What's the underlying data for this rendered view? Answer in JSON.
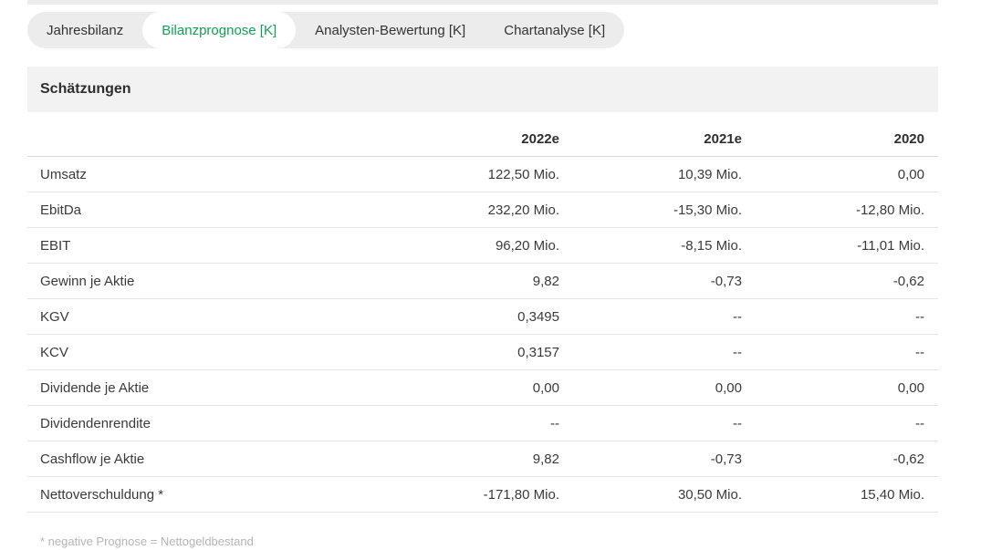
{
  "colors": {
    "accent": "#12a054"
  },
  "tabs": [
    {
      "label": "Jahresbilanz",
      "active": false
    },
    {
      "label": "Bilanzprognose [K]",
      "active": true
    },
    {
      "label": "Analysten-Bewertung [K]",
      "active": false
    },
    {
      "label": "Chartanalyse [K]",
      "active": false
    }
  ],
  "section": {
    "title": "Schätzungen"
  },
  "chart_data": {
    "type": "table",
    "title": "Schätzungen",
    "columns": [
      "",
      "2022e",
      "2021e",
      "2020"
    ],
    "rows": [
      {
        "label": "Umsatz",
        "values": [
          "122,50 Mio.",
          "10,39 Mio.",
          "0,00"
        ]
      },
      {
        "label": "EbitDa",
        "values": [
          "232,20 Mio.",
          "-15,30 Mio.",
          "-12,80 Mio."
        ]
      },
      {
        "label": "EBIT",
        "values": [
          "96,20 Mio.",
          "-8,15 Mio.",
          "-11,01 Mio."
        ]
      },
      {
        "label": "Gewinn je Aktie",
        "values": [
          "9,82",
          "-0,73",
          "-0,62"
        ]
      },
      {
        "label": "KGV",
        "values": [
          "0,3495",
          "--",
          "--"
        ]
      },
      {
        "label": "KCV",
        "values": [
          "0,3157",
          "--",
          "--"
        ]
      },
      {
        "label": "Dividende je Aktie",
        "values": [
          "0,00",
          "0,00",
          "0,00"
        ]
      },
      {
        "label": "Dividendenrendite",
        "values": [
          "--",
          "--",
          "--"
        ]
      },
      {
        "label": "Cashflow je Aktie",
        "values": [
          "9,82",
          "-0,73",
          "-0,62"
        ]
      },
      {
        "label": "Nettoverschuldung *",
        "values": [
          "-171,80 Mio.",
          "30,50 Mio.",
          "15,40 Mio."
        ]
      }
    ]
  },
  "footnote": "* negative Prognose = Nettogeldbestand"
}
